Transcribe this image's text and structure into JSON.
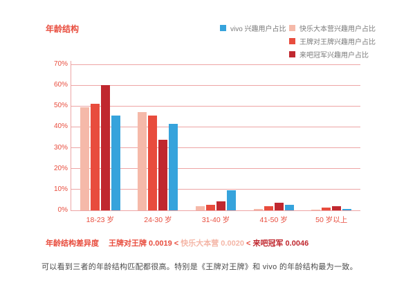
{
  "page": {
    "title": "年龄结构",
    "diff": {
      "label": "年龄结构差异度",
      "parts": [
        {
          "text": "王牌对王牌 0.0019",
          "color": "#e84c3d"
        },
        {
          "text": " < ",
          "color": "#e84c3d"
        },
        {
          "text": "快乐大本营 0.0020",
          "color": "#f4b6a7"
        },
        {
          "text": " < ",
          "color": "#e84c3d"
        },
        {
          "text": "来吧冠军 0.0046",
          "color": "#c0282f"
        }
      ]
    },
    "footer_note": "可以看到三者的年龄结构匹配都很高。特别是《王牌对王牌》和 vivo 的年龄结构最为一致。"
  },
  "chart_data": {
    "type": "bar",
    "title": "年龄结构",
    "categories": [
      "18-23 岁",
      "24-30 岁",
      "31-40 岁",
      "41-50 岁",
      "50 岁以上"
    ],
    "series": [
      {
        "name": "快乐大本营兴趣用户占比",
        "color": "#f5b9a9",
        "values": [
          49.5,
          47.0,
          2.0,
          0.8,
          0.4
        ]
      },
      {
        "name": "王牌对王牌兴趣用户占比",
        "color": "#e84c3d",
        "values": [
          51.0,
          45.5,
          2.7,
          2.0,
          1.2
        ]
      },
      {
        "name": "来吧冠军兴趣用户占比",
        "color": "#c0282f",
        "values": [
          60.0,
          34.0,
          4.2,
          3.5,
          2.0
        ]
      },
      {
        "name": "vivo 兴趣用户占比",
        "color": "#36a3dc",
        "values": [
          45.5,
          41.5,
          9.5,
          2.8,
          0.7
        ]
      }
    ],
    "legend": {
      "col1": [
        {
          "label": "vivo 兴趣用户占比",
          "color": "#36a3dc"
        }
      ],
      "col2": [
        {
          "label": "快乐大本营兴趣用户占比",
          "color": "#f5b9a9"
        },
        {
          "label": "王牌对王牌兴趣用户占比",
          "color": "#e84c3d"
        },
        {
          "label": "来吧冠军兴趣用户占比",
          "color": "#c0282f"
        }
      ]
    },
    "y_ticks": [
      "0%",
      "10%",
      "20%",
      "30%",
      "40%",
      "50%",
      "60%",
      "70%"
    ],
    "ylim": [
      0,
      70
    ],
    "grid": true,
    "legend_position": "top-right",
    "axis_color": "#eda4a4",
    "tick_label_color": "#e84c3d"
  }
}
